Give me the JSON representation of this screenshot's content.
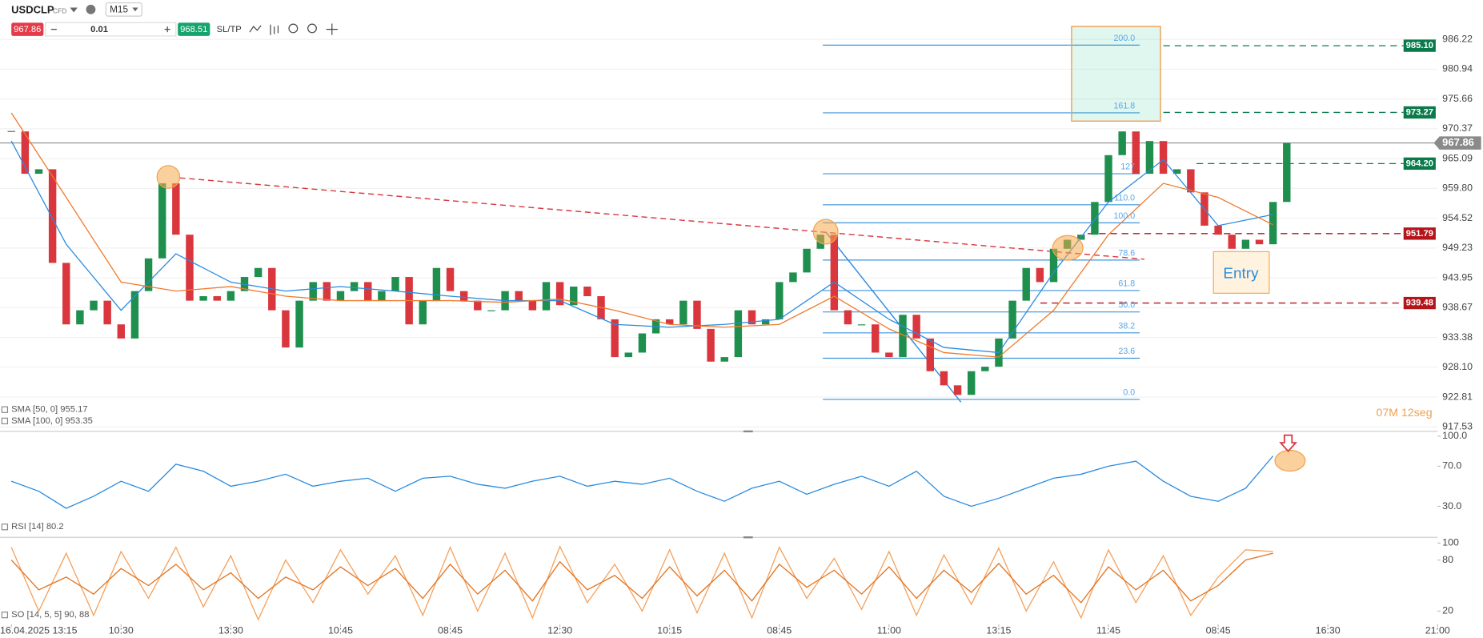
{
  "toolbar": {
    "symbol": "USDCLP",
    "instrument_type": "CFD",
    "timeframe": "M15",
    "bid": 967.86,
    "quantity": 0.01,
    "ask": 968.51,
    "sl_tp": "SL/TP"
  },
  "chart_data": [
    {
      "type": "candlestick",
      "x": [
        0,
        1,
        2,
        3,
        4,
        5,
        6,
        7,
        8,
        9,
        10,
        11,
        12,
        13,
        14,
        15,
        16,
        17,
        18,
        19,
        20,
        21,
        22,
        23,
        24,
        25,
        26,
        27,
        28,
        29,
        30,
        31,
        32,
        33,
        34,
        35,
        36,
        37,
        38,
        39,
        40,
        41,
        42,
        43,
        44,
        45,
        46,
        47,
        48,
        49,
        50,
        51,
        52,
        53,
        54,
        55,
        56,
        57,
        58,
        59,
        60,
        61,
        62,
        63,
        64,
        65,
        66,
        67,
        68,
        69,
        70,
        71,
        72,
        73,
        74,
        75,
        76,
        77,
        78,
        79,
        80,
        81,
        82,
        83,
        84,
        85,
        86,
        87,
        88,
        89,
        90,
        91,
        92,
        93
      ],
      "values": [
        969.9,
        962.4,
        963.2,
        946.6,
        935.7,
        938.2,
        939.9,
        935.7,
        933.2,
        941.6,
        947.4,
        960.7,
        951.6,
        939.9,
        940.7,
        939.9,
        941.6,
        944.1,
        945.7,
        938.2,
        931.6,
        939.9,
        943.2,
        939.9,
        941.6,
        943.2,
        939.9,
        941.6,
        944.1,
        935.7,
        939.9,
        945.7,
        941.6,
        939.9,
        938.2,
        938.2,
        941.6,
        939.9,
        938.2,
        943.2,
        939.1,
        942.4,
        940.7,
        936.6,
        929.9,
        930.7,
        934.1,
        936.6,
        935.7,
        939.9,
        934.9,
        929.1,
        929.9,
        938.2,
        935.7,
        936.6,
        943.2,
        944.9,
        949.1,
        951.6,
        938.2,
        935.7,
        935.7,
        930.7,
        929.9,
        937.4,
        933.2,
        927.4,
        924.9,
        923.2,
        927.4,
        928.2,
        933.2,
        939.9,
        945.7,
        943.2,
        949.1,
        950.7,
        951.6,
        957.4,
        965.7,
        969.9,
        962.4,
        968.2,
        962.4,
        963.2,
        959.1,
        953.2,
        951.6,
        949.1,
        950.7,
        949.9,
        957.4,
        967.86
      ],
      "up_color": "#1f8f4e",
      "down_color": "#d9363e",
      "series": [
        {
          "name": "SMA [50, 0] 955.17",
          "color": "#2a8be0",
          "x": [
            0,
            4,
            8,
            12,
            16,
            20,
            24,
            28,
            32,
            36,
            40,
            44,
            48,
            52,
            56,
            60,
            64,
            68,
            72,
            76,
            80,
            84,
            88,
            92
          ],
          "values": [
            968.2,
            949.9,
            938.2,
            948.2,
            943.2,
            941.6,
            942.4,
            941.6,
            940.7,
            939.9,
            939.9,
            935.7,
            935.2,
            935.7,
            936.6,
            943.2,
            936.6,
            931.6,
            930.7,
            944.9,
            957.4,
            964.9,
            953.2,
            955.17
          ]
        },
        {
          "name": "SMA [100, 0] 953.35",
          "color": "#f07a2e",
          "x": [
            0,
            4,
            8,
            12,
            16,
            20,
            24,
            28,
            32,
            36,
            40,
            44,
            48,
            52,
            56,
            60,
            64,
            68,
            72,
            76,
            80,
            84,
            88,
            92
          ],
          "values": [
            973.2,
            958.2,
            943.2,
            941.6,
            942.4,
            940.7,
            939.9,
            939.9,
            939.9,
            939.6,
            940.2,
            938.2,
            935.7,
            935.2,
            935.7,
            940.7,
            934.9,
            930.7,
            929.9,
            938.2,
            951.6,
            960.7,
            958.2,
            953.35
          ]
        }
      ],
      "xlim": [
        -0.83,
        104
      ],
      "ylim": [
        916.9,
        993.2
      ],
      "yticks": [
        986.22,
        980.94,
        975.66,
        970.37,
        965.09,
        {
          "value": 959.8,
          "label": "959.80"
        },
        954.52,
        949.23,
        943.95,
        938.67,
        933.38,
        {
          "value": 928.1,
          "label": "928.10"
        },
        922.81,
        917.53
      ],
      "grid": true,
      "current_price": 967.86,
      "price_lines": [
        {
          "value": 985.1,
          "label": "985.10",
          "color": "#0b7a4b"
        },
        {
          "value": 973.27,
          "label": "973.27",
          "color": "#0b7a4b"
        },
        {
          "value": 964.2,
          "label": "964.20",
          "color": "#0b7a4b"
        },
        {
          "value": 951.79,
          "label": "951.79",
          "color": "#b3151b"
        },
        {
          "value": 939.48,
          "label": "939.48",
          "color": "#b3151b"
        }
      ],
      "fibonacci": [
        {
          "label": "0.0",
          "price": 922.4
        },
        {
          "label": "23.6",
          "price": 929.7
        },
        {
          "label": "38.2",
          "price": 934.2
        },
        {
          "label": "50.0",
          "price": 937.9
        },
        {
          "label": "61.8",
          "price": 941.7
        },
        {
          "label": "78.6",
          "price": 947.1
        },
        {
          "label": "100.0",
          "price": 953.7
        },
        {
          "label": "110.0",
          "price": 956.9
        },
        {
          "label": "127",
          "price": 962.4
        },
        {
          "label": "161.8",
          "price": 973.2
        },
        {
          "label": "200.0",
          "price": 985.2
        }
      ],
      "annotation": "Entry",
      "countdown": "07M 12seg"
    },
    {
      "type": "line",
      "series": [
        {
          "name": "RSI [14] 80.2",
          "color": "#2a8be0",
          "x": [
            0,
            2,
            4,
            6,
            8,
            10,
            12,
            14,
            16,
            18,
            20,
            22,
            24,
            26,
            28,
            30,
            32,
            34,
            36,
            38,
            40,
            42,
            44,
            46,
            48,
            50,
            52,
            54,
            56,
            58,
            60,
            62,
            64,
            66,
            68,
            70,
            72,
            74,
            76,
            78,
            80,
            82,
            84,
            86,
            88,
            90,
            92
          ],
          "values": [
            55,
            45,
            28,
            40,
            55,
            45,
            72,
            65,
            50,
            55,
            62,
            50,
            55,
            58,
            45,
            58,
            60,
            52,
            48,
            55,
            60,
            50,
            55,
            52,
            58,
            45,
            35,
            48,
            55,
            42,
            52,
            60,
            50,
            65,
            40,
            30,
            38,
            48,
            58,
            62,
            70,
            75,
            55,
            40,
            35,
            48,
            80.2
          ]
        }
      ],
      "xlim": [
        -0.83,
        104
      ],
      "ylim": [
        0,
        103.8
      ],
      "yticks": [
        {
          "value": 100,
          "label": "100.0"
        },
        {
          "value": 70,
          "label": "70.0"
        },
        {
          "value": 30,
          "label": "30.0"
        }
      ]
    },
    {
      "type": "line",
      "series": [
        {
          "name": "SO [14, 5, 5] 90, 88",
          "color": "#f5a05a",
          "x": [
            0,
            2,
            4,
            6,
            8,
            10,
            12,
            14,
            16,
            18,
            20,
            22,
            24,
            26,
            28,
            30,
            32,
            34,
            36,
            38,
            40,
            42,
            44,
            46,
            48,
            50,
            52,
            54,
            56,
            58,
            60,
            62,
            64,
            66,
            68,
            70,
            72,
            74,
            76,
            78,
            80,
            82,
            84,
            86,
            88,
            90,
            92
          ],
          "values": [
            95,
            20,
            88,
            15,
            90,
            35,
            95,
            25,
            85,
            10,
            80,
            30,
            92,
            40,
            85,
            15,
            95,
            20,
            88,
            12,
            96,
            30,
            75,
            20,
            92,
            18,
            88,
            12,
            95,
            35,
            82,
            22,
            90,
            15,
            86,
            28,
            94,
            20,
            78,
            12,
            92,
            30,
            85,
            15,
            60,
            92,
            90
          ]
        },
        {
          "color": "#e0721f",
          "x": [
            0,
            2,
            4,
            6,
            8,
            10,
            12,
            14,
            16,
            18,
            20,
            22,
            24,
            26,
            28,
            30,
            32,
            34,
            36,
            38,
            40,
            42,
            44,
            46,
            48,
            50,
            52,
            54,
            56,
            58,
            60,
            62,
            64,
            66,
            68,
            70,
            72,
            74,
            76,
            78,
            80,
            82,
            84,
            86,
            88,
            90,
            92
          ],
          "values": [
            80,
            45,
            60,
            40,
            70,
            50,
            75,
            45,
            65,
            35,
            60,
            45,
            72,
            50,
            70,
            35,
            75,
            40,
            68,
            32,
            78,
            45,
            62,
            35,
            72,
            38,
            68,
            32,
            75,
            48,
            68,
            40,
            72,
            35,
            68,
            42,
            76,
            40,
            62,
            30,
            72,
            45,
            68,
            32,
            50,
            80,
            88
          ]
        }
      ],
      "xlim": [
        -0.83,
        104
      ],
      "ylim": [
        4.4,
        105.6
      ],
      "yticks": [
        100,
        80,
        20
      ],
      "xticks": [
        {
          "value": 0,
          "label": "16.04.2025 13:15"
        },
        {
          "value": 8,
          "label": "10:30"
        },
        {
          "value": 16,
          "label": "13:30"
        },
        {
          "value": 24,
          "label": "10:45"
        },
        {
          "value": 32,
          "label": "08:45"
        },
        {
          "value": 40,
          "label": "12:30"
        },
        {
          "value": 48,
          "label": "10:15"
        },
        {
          "value": 56,
          "label": "08:45"
        },
        {
          "value": 64,
          "label": "11:00"
        },
        {
          "value": 72,
          "label": "13:15"
        },
        {
          "value": 80,
          "label": "11:45"
        },
        {
          "value": 88,
          "label": "08:45"
        },
        {
          "value": 96,
          "label": "16:30"
        },
        {
          "value": 104,
          "label": "21:00"
        }
      ]
    }
  ]
}
